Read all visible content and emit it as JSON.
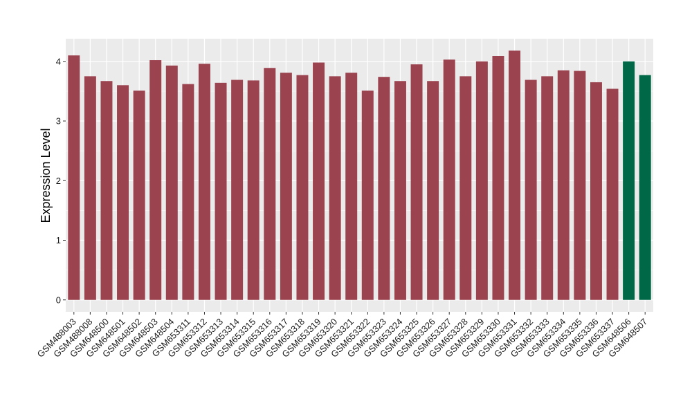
{
  "chart_data": {
    "type": "bar",
    "ylabel": "Expression Level",
    "xlabel": "",
    "ylim": [
      -0.2,
      4.38
    ],
    "yticks": [
      0,
      1,
      2,
      3,
      4
    ],
    "grid": true,
    "panel_background": "#ebebeb",
    "categories": [
      "GSM488003",
      "GSM488008",
      "GSM648500",
      "GSM648501",
      "GSM648502",
      "GSM648503",
      "GSM648504",
      "GSM653311",
      "GSM653312",
      "GSM653313",
      "GSM653314",
      "GSM653315",
      "GSM653316",
      "GSM653317",
      "GSM653318",
      "GSM653319",
      "GSM653320",
      "GSM653321",
      "GSM653322",
      "GSM653323",
      "GSM653324",
      "GSM653325",
      "GSM653326",
      "GSM653327",
      "GSM653328",
      "GSM653329",
      "GSM653330",
      "GSM653331",
      "GSM653332",
      "GSM653333",
      "GSM653334",
      "GSM653335",
      "GSM653336",
      "GSM653337",
      "GSM648506",
      "GSM648507"
    ],
    "values": [
      4.1,
      3.75,
      3.67,
      3.6,
      3.51,
      4.02,
      3.93,
      3.62,
      3.96,
      3.64,
      3.69,
      3.68,
      3.89,
      3.81,
      3.77,
      3.98,
      3.75,
      3.81,
      3.51,
      3.74,
      3.67,
      3.95,
      3.67,
      4.03,
      3.75,
      4.0,
      4.09,
      4.18,
      3.69,
      3.75,
      3.85,
      3.84,
      3.65,
      3.54,
      4.0,
      3.77
    ],
    "colors": {
      "group1": "#9c4350",
      "group2": "#006846"
    },
    "bar_groups": [
      "group1",
      "group1",
      "group1",
      "group1",
      "group1",
      "group1",
      "group1",
      "group1",
      "group1",
      "group1",
      "group1",
      "group1",
      "group1",
      "group1",
      "group1",
      "group1",
      "group1",
      "group1",
      "group1",
      "group1",
      "group1",
      "group1",
      "group1",
      "group1",
      "group1",
      "group1",
      "group1",
      "group1",
      "group1",
      "group1",
      "group1",
      "group1",
      "group1",
      "group1",
      "group2",
      "group2"
    ]
  }
}
